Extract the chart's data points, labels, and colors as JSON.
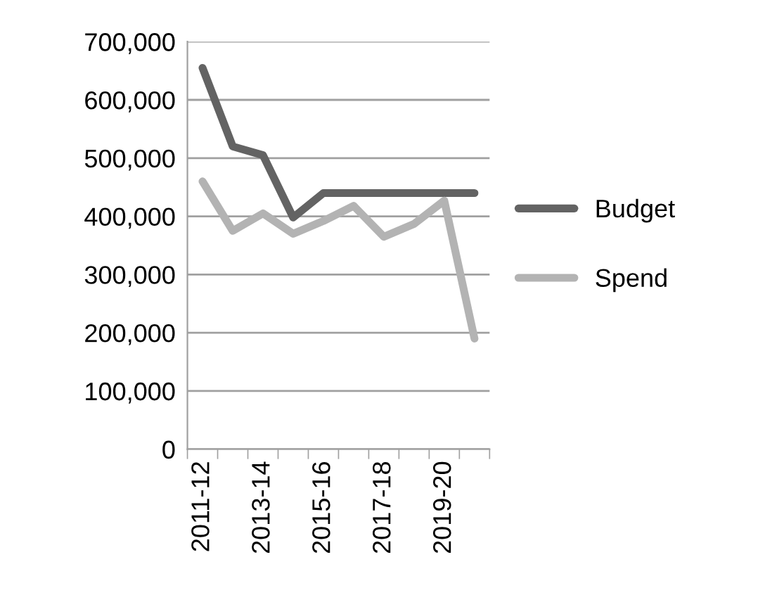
{
  "chart_data": {
    "type": "line",
    "categories": [
      "2011-12",
      null,
      "2013-14",
      null,
      "2015-16",
      null,
      "2017-18",
      null,
      "2019-20",
      null
    ],
    "series": [
      {
        "name": "Budget",
        "color": "#636363",
        "values": [
          655000,
          520000,
          505000,
          398000,
          440000,
          440000,
          440000,
          440000,
          440000,
          440000
        ]
      },
      {
        "name": "Spend",
        "color": "#b3b3b3",
        "values": [
          460000,
          375000,
          405000,
          370000,
          392000,
          418000,
          365000,
          387000,
          427000,
          190000
        ]
      }
    ],
    "ylim": [
      0,
      700000
    ],
    "yticks": [
      {
        "value": 0,
        "label": "0"
      },
      {
        "value": 100000,
        "label": "100,000"
      },
      {
        "value": 200000,
        "label": "200,000"
      },
      {
        "value": 300000,
        "label": "300,000"
      },
      {
        "value": 400000,
        "label": "400,000"
      },
      {
        "value": 500000,
        "label": "500,000"
      },
      {
        "value": 600000,
        "label": "600,000"
      },
      {
        "value": 700000,
        "label": "700,000"
      }
    ],
    "grid": "y",
    "legend": "right",
    "marker": "none",
    "line_style": "solid"
  }
}
